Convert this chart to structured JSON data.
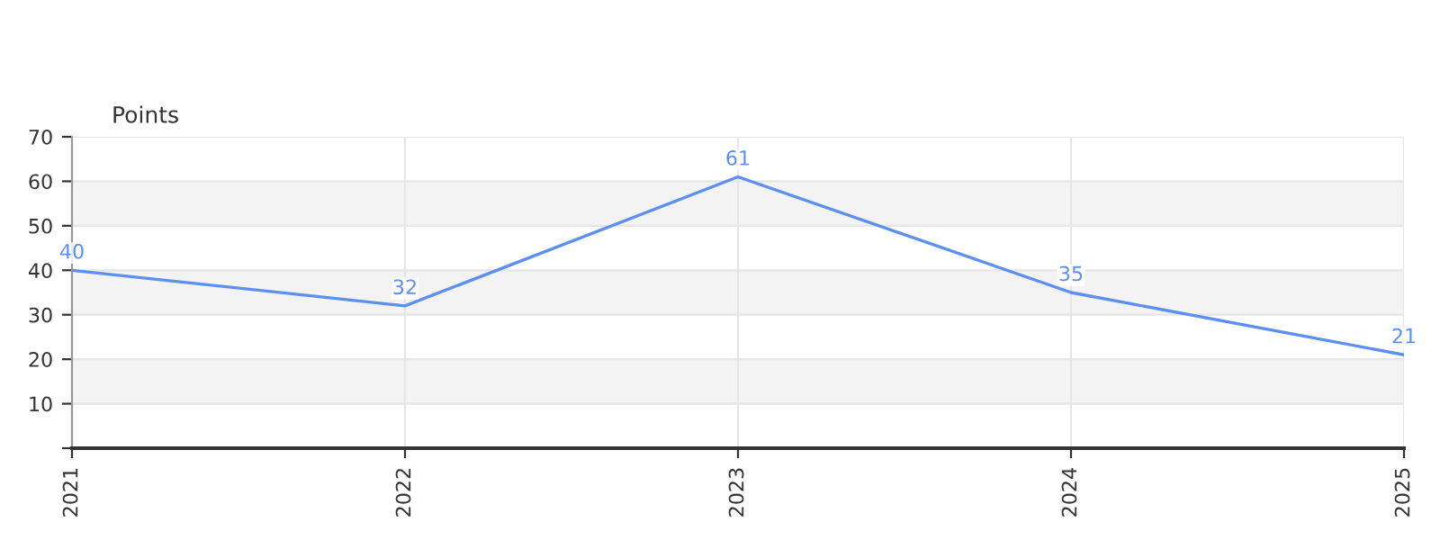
{
  "chart_data": {
    "type": "line",
    "ylabel": "Points",
    "categories": [
      "2021",
      "2022",
      "2023",
      "2024",
      "2025"
    ],
    "series": [
      {
        "color": "#5b8ff0",
        "values": [
          40,
          32,
          61,
          35,
          21
        ]
      }
    ],
    "ylim": [
      0,
      70
    ],
    "yticks": [
      {
        "value": 0,
        "label": null
      },
      10,
      20,
      30,
      40,
      50,
      60,
      70
    ],
    "bands": [
      {
        "axis": "y",
        "from": 10,
        "to": 20,
        "color": "#f3f3f3"
      },
      {
        "axis": "y",
        "from": 30,
        "to": 40,
        "color": "#f3f3f3"
      },
      {
        "axis": "y",
        "from": 50,
        "to": 60,
        "color": "#f3f3f3"
      }
    ],
    "grid": true,
    "data_labels": true,
    "marker": "none",
    "line_style": "solid"
  }
}
